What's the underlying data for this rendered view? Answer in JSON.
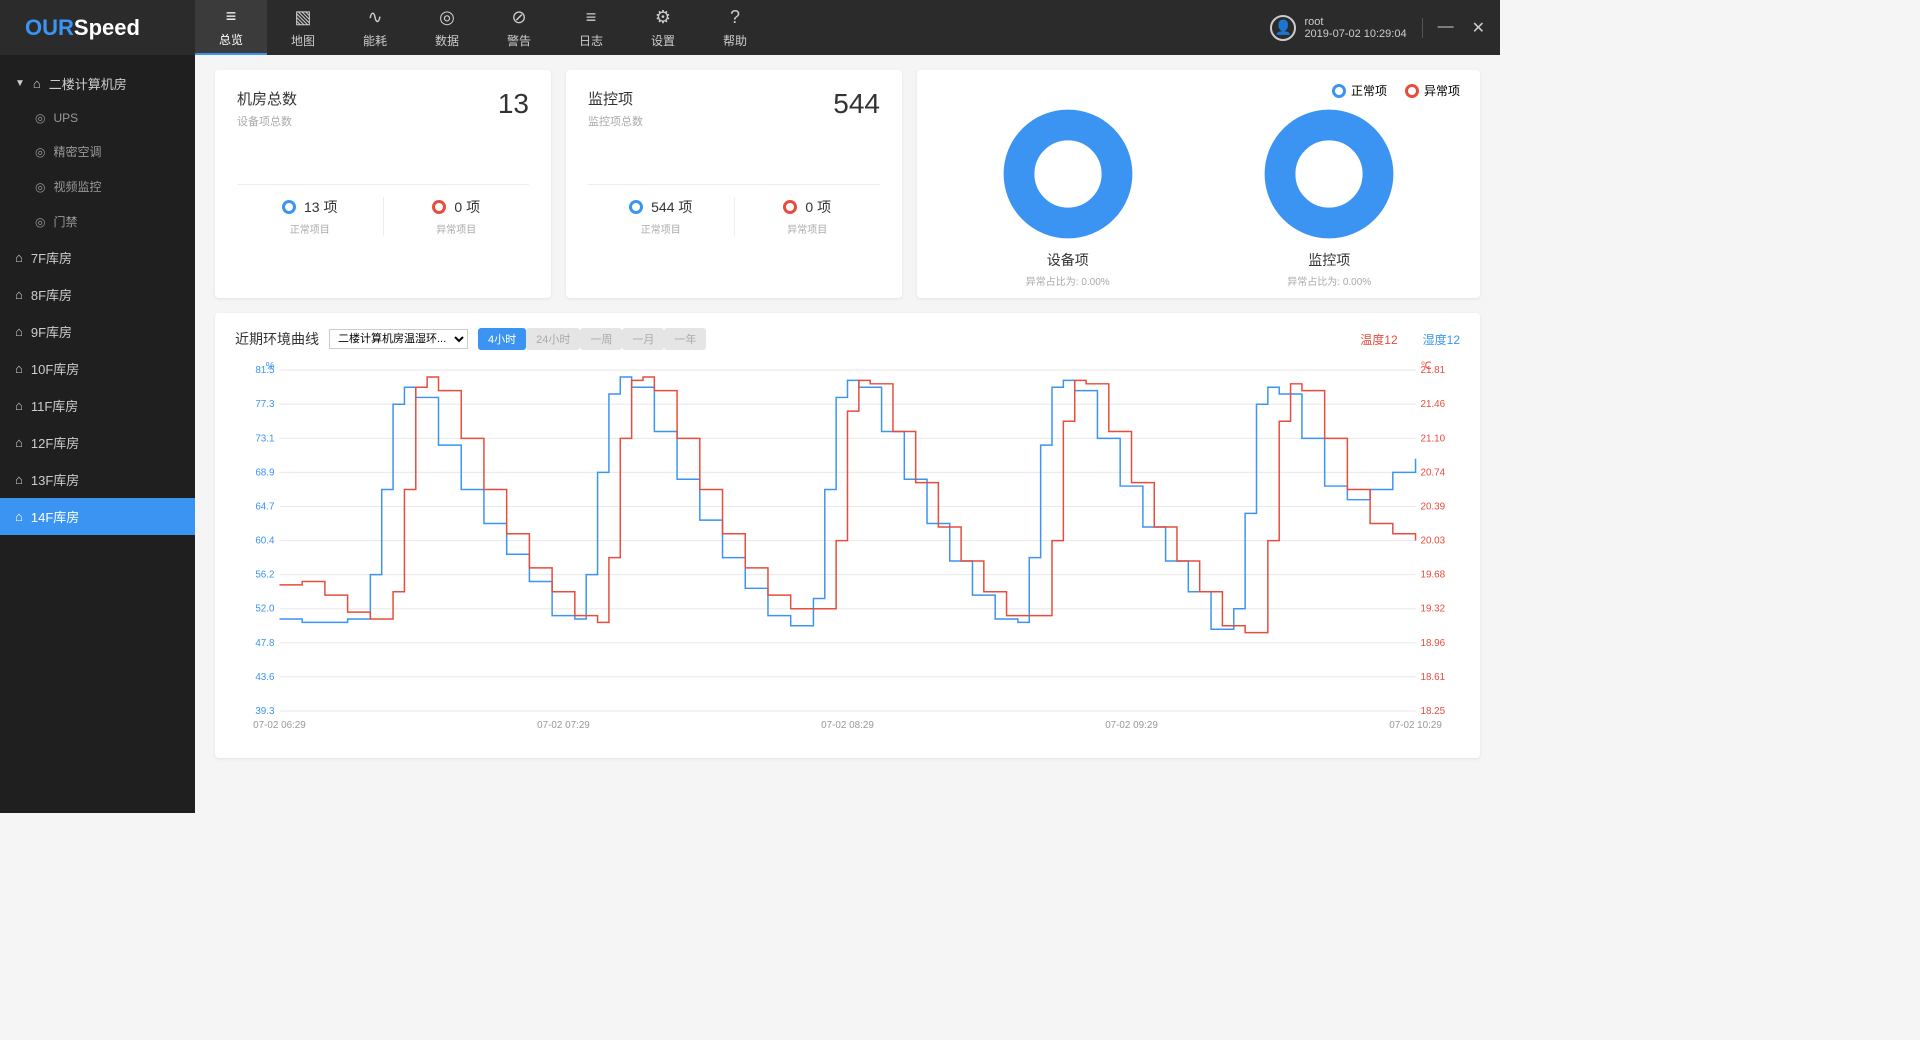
{
  "logo": {
    "left": "OUR",
    "right": "Speed"
  },
  "nav": [
    {
      "icon": "≡",
      "label": "总览",
      "active": true
    },
    {
      "icon": "▧",
      "label": "地图"
    },
    {
      "icon": "∿",
      "label": "能耗"
    },
    {
      "icon": "◎",
      "label": "数据"
    },
    {
      "icon": "⊘",
      "label": "警告"
    },
    {
      "icon": "≡",
      "label": "日志"
    },
    {
      "icon": "⚙",
      "label": "设置"
    },
    {
      "icon": "?",
      "label": "帮助"
    }
  ],
  "user": {
    "name": "root",
    "time": "2019-07-02 10:29:04"
  },
  "sidebar": [
    {
      "label": "二楼计算机房",
      "type": "parent",
      "expanded": true,
      "children": [
        {
          "label": "UPS"
        },
        {
          "label": "精密空调"
        },
        {
          "label": "视频监控"
        },
        {
          "label": "门禁"
        }
      ]
    },
    {
      "label": "7F库房",
      "type": "parent"
    },
    {
      "label": "8F库房",
      "type": "parent"
    },
    {
      "label": "9F库房",
      "type": "parent"
    },
    {
      "label": "10F库房",
      "type": "parent"
    },
    {
      "label": "11F库房",
      "type": "parent"
    },
    {
      "label": "12F库房",
      "type": "parent"
    },
    {
      "label": "13F库房",
      "type": "parent"
    },
    {
      "label": "14F库房",
      "type": "parent",
      "active": true
    }
  ],
  "stat1": {
    "title": "机房总数",
    "sub": "设备项总数",
    "value": "13",
    "normal_count": "13 项",
    "normal_label": "正常项目",
    "abnormal_count": "0 项",
    "abnormal_label": "异常项目"
  },
  "stat2": {
    "title": "监控项",
    "sub": "监控项总数",
    "value": "544",
    "normal_count": "544 项",
    "normal_label": "正常项目",
    "abnormal_count": "0 项",
    "abnormal_label": "异常项目"
  },
  "donut_legend": {
    "normal": "正常项",
    "abnormal": "异常项"
  },
  "donut1": {
    "title": "设备项",
    "sub": "异常占比为: 0.00%",
    "color": "#3b94f1"
  },
  "donut2": {
    "title": "监控项",
    "sub": "异常占比为: 0.00%",
    "color": "#3b94f1"
  },
  "chart": {
    "title": "近期环境曲线",
    "dropdown": "二楼计算机房温湿环...",
    "time_buttons": [
      {
        "label": "4小时",
        "active": true
      },
      {
        "label": "24小时"
      },
      {
        "label": "一周"
      },
      {
        "label": "一月"
      },
      {
        "label": "一年"
      }
    ],
    "legend_temp": "温度12",
    "legend_hum": "湿度12",
    "y_left_unit": "%",
    "y_right_unit": "℃",
    "y_left_ticks": [
      "81.5",
      "77.3",
      "73.1",
      "68.9",
      "64.7",
      "60.4",
      "56.2",
      "52.0",
      "47.8",
      "43.6",
      "39.3"
    ],
    "y_right_ticks": [
      "21.81",
      "21.46",
      "21.10",
      "20.74",
      "20.39",
      "20.03",
      "19.68",
      "19.32",
      "18.96",
      "18.61",
      "18.25"
    ],
    "x_ticks": [
      "07-02 06:29",
      "07-02 07:29",
      "07-02 08:29",
      "07-02 09:29",
      "07-02 10:29"
    ],
    "colors": {
      "temp": "#e74c3c",
      "hum": "#3b94f1",
      "grid": "#e8e8e8",
      "axis_text": "#999"
    },
    "hum_pts": [
      [
        0,
        0.73
      ],
      [
        2,
        0.74
      ],
      [
        4,
        0.74
      ],
      [
        6,
        0.73
      ],
      [
        8,
        0.6
      ],
      [
        9,
        0.35
      ],
      [
        10,
        0.1
      ],
      [
        11,
        0.05
      ],
      [
        12,
        0.08
      ],
      [
        14,
        0.22
      ],
      [
        16,
        0.35
      ],
      [
        18,
        0.45
      ],
      [
        20,
        0.54
      ],
      [
        22,
        0.62
      ],
      [
        24,
        0.72
      ],
      [
        26,
        0.73
      ],
      [
        27,
        0.6
      ],
      [
        28,
        0.3
      ],
      [
        29,
        0.07
      ],
      [
        30,
        0.02
      ],
      [
        31,
        0.05
      ],
      [
        33,
        0.18
      ],
      [
        35,
        0.32
      ],
      [
        37,
        0.44
      ],
      [
        39,
        0.55
      ],
      [
        41,
        0.64
      ],
      [
        43,
        0.72
      ],
      [
        45,
        0.75
      ],
      [
        47,
        0.67
      ],
      [
        48,
        0.35
      ],
      [
        49,
        0.08
      ],
      [
        50,
        0.03
      ],
      [
        51,
        0.05
      ],
      [
        53,
        0.18
      ],
      [
        55,
        0.32
      ],
      [
        57,
        0.45
      ],
      [
        59,
        0.56
      ],
      [
        61,
        0.66
      ],
      [
        63,
        0.73
      ],
      [
        65,
        0.74
      ],
      [
        66,
        0.55
      ],
      [
        67,
        0.22
      ],
      [
        68,
        0.05
      ],
      [
        69,
        0.03
      ],
      [
        70,
        0.06
      ],
      [
        72,
        0.2
      ],
      [
        74,
        0.34
      ],
      [
        76,
        0.46
      ],
      [
        78,
        0.56
      ],
      [
        80,
        0.65
      ],
      [
        82,
        0.76
      ],
      [
        84,
        0.7
      ],
      [
        85,
        0.42
      ],
      [
        86,
        0.1
      ],
      [
        87,
        0.05
      ],
      [
        88,
        0.07
      ],
      [
        90,
        0.2
      ],
      [
        92,
        0.34
      ],
      [
        94,
        0.38
      ],
      [
        96,
        0.35
      ],
      [
        98,
        0.3
      ],
      [
        100,
        0.26
      ]
    ],
    "temp_pts": [
      [
        0,
        0.63
      ],
      [
        2,
        0.62
      ],
      [
        4,
        0.66
      ],
      [
        6,
        0.71
      ],
      [
        8,
        0.73
      ],
      [
        10,
        0.65
      ],
      [
        11,
        0.35
      ],
      [
        12,
        0.05
      ],
      [
        13,
        0.02
      ],
      [
        14,
        0.06
      ],
      [
        16,
        0.2
      ],
      [
        18,
        0.35
      ],
      [
        20,
        0.48
      ],
      [
        22,
        0.58
      ],
      [
        24,
        0.65
      ],
      [
        26,
        0.72
      ],
      [
        28,
        0.74
      ],
      [
        29,
        0.55
      ],
      [
        30,
        0.2
      ],
      [
        31,
        0.03
      ],
      [
        32,
        0.02
      ],
      [
        33,
        0.06
      ],
      [
        35,
        0.2
      ],
      [
        37,
        0.35
      ],
      [
        39,
        0.48
      ],
      [
        41,
        0.58
      ],
      [
        43,
        0.66
      ],
      [
        45,
        0.7
      ],
      [
        47,
        0.7
      ],
      [
        49,
        0.5
      ],
      [
        50,
        0.12
      ],
      [
        51,
        0.03
      ],
      [
        52,
        0.04
      ],
      [
        54,
        0.18
      ],
      [
        56,
        0.33
      ],
      [
        58,
        0.46
      ],
      [
        60,
        0.56
      ],
      [
        62,
        0.65
      ],
      [
        64,
        0.72
      ],
      [
        66,
        0.72
      ],
      [
        68,
        0.5
      ],
      [
        69,
        0.15
      ],
      [
        70,
        0.03
      ],
      [
        71,
        0.04
      ],
      [
        73,
        0.18
      ],
      [
        75,
        0.33
      ],
      [
        77,
        0.46
      ],
      [
        79,
        0.56
      ],
      [
        81,
        0.65
      ],
      [
        83,
        0.75
      ],
      [
        85,
        0.77
      ],
      [
        87,
        0.5
      ],
      [
        88,
        0.15
      ],
      [
        89,
        0.04
      ],
      [
        90,
        0.06
      ],
      [
        92,
        0.2
      ],
      [
        94,
        0.35
      ],
      [
        96,
        0.45
      ],
      [
        98,
        0.48
      ],
      [
        100,
        0.5
      ]
    ]
  }
}
